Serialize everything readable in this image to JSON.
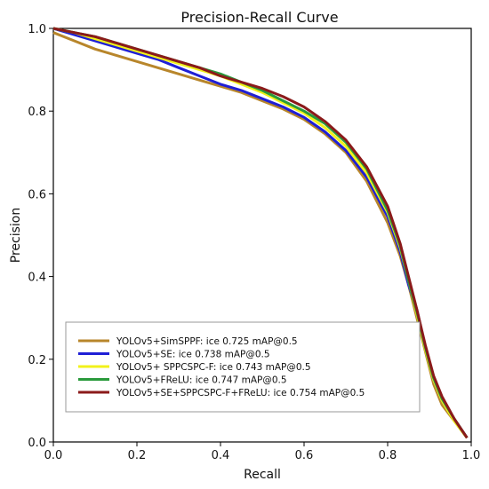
{
  "chart_data": {
    "type": "line",
    "title": "Precision-Recall Curve",
    "xlabel": "Recall",
    "ylabel": "Precision",
    "xlim": [
      0.0,
      1.0
    ],
    "ylim": [
      0.0,
      1.0
    ],
    "x_ticks": [
      0.0,
      0.2,
      0.4,
      0.6,
      0.8,
      1.0
    ],
    "y_ticks": [
      0.0,
      0.2,
      0.4,
      0.6,
      0.8,
      1.0
    ],
    "x_tick_labels": [
      "0.0",
      "0.2",
      "0.4",
      "0.6",
      "0.8",
      "1.0"
    ],
    "y_tick_labels": [
      "0.0",
      "0.2",
      "0.4",
      "0.6",
      "0.8",
      "1.0"
    ],
    "grid": false,
    "legend_position": "lower-left",
    "series": [
      {
        "name": "YOLOv5+SimSPPF:  ice 0.725 mAP@0.5",
        "color": "#b8862b",
        "points": [
          [
            0.0,
            0.99
          ],
          [
            0.05,
            0.97
          ],
          [
            0.1,
            0.95
          ],
          [
            0.15,
            0.935
          ],
          [
            0.2,
            0.92
          ],
          [
            0.25,
            0.905
          ],
          [
            0.3,
            0.89
          ],
          [
            0.35,
            0.875
          ],
          [
            0.4,
            0.86
          ],
          [
            0.45,
            0.845
          ],
          [
            0.5,
            0.825
          ],
          [
            0.55,
            0.805
          ],
          [
            0.6,
            0.78
          ],
          [
            0.65,
            0.745
          ],
          [
            0.7,
            0.7
          ],
          [
            0.75,
            0.63
          ],
          [
            0.8,
            0.53
          ],
          [
            0.83,
            0.45
          ],
          [
            0.85,
            0.38
          ],
          [
            0.87,
            0.3
          ],
          [
            0.89,
            0.22
          ],
          [
            0.91,
            0.14
          ],
          [
            0.93,
            0.09
          ],
          [
            0.96,
            0.05
          ],
          [
            0.99,
            0.01
          ]
        ]
      },
      {
        "name": "YOLOv5+SE:  ice 0.738 mAP@0.5",
        "color": "#1f1fd6",
        "points": [
          [
            0.0,
            1.0
          ],
          [
            0.05,
            0.985
          ],
          [
            0.1,
            0.97
          ],
          [
            0.15,
            0.955
          ],
          [
            0.2,
            0.94
          ],
          [
            0.25,
            0.925
          ],
          [
            0.3,
            0.905
          ],
          [
            0.35,
            0.885
          ],
          [
            0.4,
            0.865
          ],
          [
            0.45,
            0.85
          ],
          [
            0.5,
            0.83
          ],
          [
            0.55,
            0.81
          ],
          [
            0.6,
            0.785
          ],
          [
            0.65,
            0.75
          ],
          [
            0.7,
            0.705
          ],
          [
            0.75,
            0.64
          ],
          [
            0.8,
            0.545
          ],
          [
            0.83,
            0.46
          ],
          [
            0.85,
            0.38
          ],
          [
            0.87,
            0.32
          ],
          [
            0.89,
            0.23
          ],
          [
            0.91,
            0.15
          ],
          [
            0.93,
            0.1
          ],
          [
            0.96,
            0.055
          ],
          [
            0.99,
            0.01
          ]
        ]
      },
      {
        "name": "YOLOv5+ SPPCSPC-F:  ice 0.743 mAP@0.5",
        "color": "#f2f21a",
        "points": [
          [
            0.0,
            1.0
          ],
          [
            0.05,
            0.99
          ],
          [
            0.1,
            0.975
          ],
          [
            0.15,
            0.96
          ],
          [
            0.2,
            0.945
          ],
          [
            0.25,
            0.93
          ],
          [
            0.3,
            0.915
          ],
          [
            0.35,
            0.9
          ],
          [
            0.4,
            0.885
          ],
          [
            0.45,
            0.865
          ],
          [
            0.5,
            0.845
          ],
          [
            0.55,
            0.82
          ],
          [
            0.6,
            0.795
          ],
          [
            0.65,
            0.76
          ],
          [
            0.7,
            0.715
          ],
          [
            0.75,
            0.65
          ],
          [
            0.8,
            0.555
          ],
          [
            0.83,
            0.47
          ],
          [
            0.85,
            0.39
          ],
          [
            0.87,
            0.31
          ],
          [
            0.89,
            0.225
          ],
          [
            0.91,
            0.15
          ],
          [
            0.93,
            0.1
          ],
          [
            0.96,
            0.05
          ],
          [
            0.99,
            0.01
          ]
        ]
      },
      {
        "name": "YOLOv5+FReLU:  ice 0.747 mAP@0.5",
        "color": "#2a9a3c",
        "points": [
          [
            0.0,
            1.0
          ],
          [
            0.05,
            0.99
          ],
          [
            0.1,
            0.98
          ],
          [
            0.15,
            0.965
          ],
          [
            0.2,
            0.95
          ],
          [
            0.25,
            0.935
          ],
          [
            0.3,
            0.92
          ],
          [
            0.35,
            0.905
          ],
          [
            0.4,
            0.89
          ],
          [
            0.45,
            0.87
          ],
          [
            0.5,
            0.85
          ],
          [
            0.55,
            0.825
          ],
          [
            0.6,
            0.8
          ],
          [
            0.65,
            0.77
          ],
          [
            0.7,
            0.725
          ],
          [
            0.75,
            0.66
          ],
          [
            0.8,
            0.56
          ],
          [
            0.83,
            0.475
          ],
          [
            0.85,
            0.39
          ],
          [
            0.87,
            0.315
          ],
          [
            0.89,
            0.23
          ],
          [
            0.91,
            0.155
          ],
          [
            0.93,
            0.105
          ],
          [
            0.96,
            0.055
          ],
          [
            0.99,
            0.01
          ]
        ]
      },
      {
        "name": "YOLOv5+SE+SPPCSPC-F+FReLU:  ice 0.754 mAP@0.5",
        "color": "#8b1a1a",
        "points": [
          [
            0.0,
            1.0
          ],
          [
            0.05,
            0.99
          ],
          [
            0.1,
            0.98
          ],
          [
            0.15,
            0.965
          ],
          [
            0.2,
            0.95
          ],
          [
            0.25,
            0.935
          ],
          [
            0.3,
            0.92
          ],
          [
            0.35,
            0.905
          ],
          [
            0.4,
            0.885
          ],
          [
            0.45,
            0.87
          ],
          [
            0.5,
            0.855
          ],
          [
            0.55,
            0.835
          ],
          [
            0.6,
            0.81
          ],
          [
            0.65,
            0.775
          ],
          [
            0.7,
            0.73
          ],
          [
            0.75,
            0.665
          ],
          [
            0.8,
            0.57
          ],
          [
            0.83,
            0.48
          ],
          [
            0.85,
            0.4
          ],
          [
            0.87,
            0.32
          ],
          [
            0.89,
            0.235
          ],
          [
            0.91,
            0.16
          ],
          [
            0.93,
            0.11
          ],
          [
            0.96,
            0.055
          ],
          [
            0.99,
            0.01
          ]
        ]
      }
    ]
  }
}
